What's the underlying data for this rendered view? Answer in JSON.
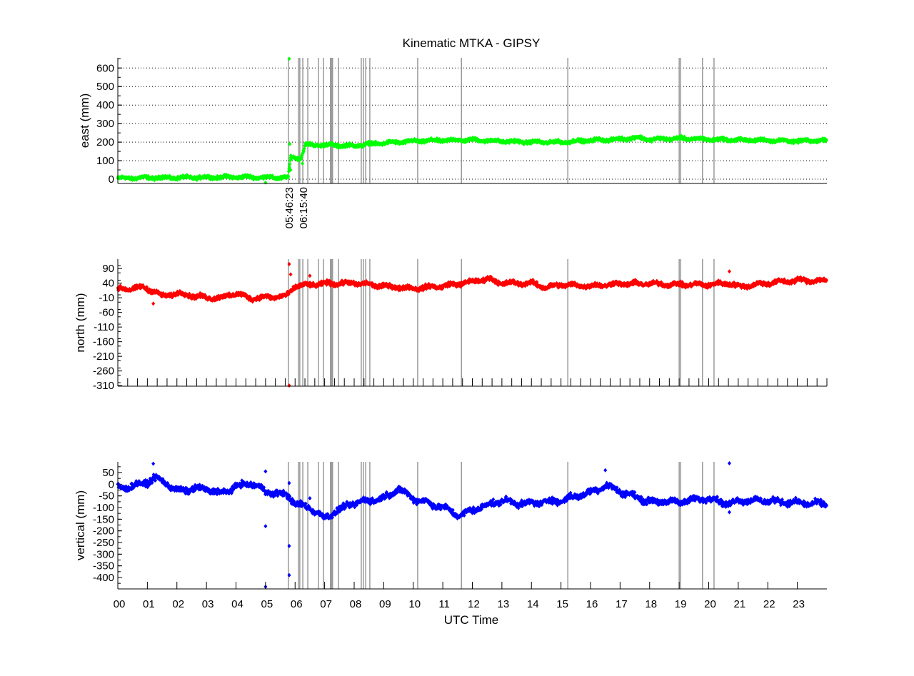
{
  "chart_data": {
    "type": "scatter",
    "title": "Kinematic MTKA - GIPSY",
    "xlabel": "UTC Time",
    "xlim": [
      0,
      24
    ],
    "x_tick_labels": [
      "00",
      "01",
      "02",
      "03",
      "04",
      "05",
      "06",
      "07",
      "08",
      "09",
      "10",
      "11",
      "12",
      "13",
      "14",
      "15",
      "16",
      "17",
      "18",
      "19",
      "20",
      "21",
      "22",
      "23"
    ],
    "event_lines_hours": [
      5.773,
      6.11,
      6.16,
      6.261,
      6.43,
      6.79,
      6.96,
      7.2,
      7.23,
      7.27,
      7.47,
      8.24,
      8.31,
      8.39,
      8.53,
      10.15,
      11.63,
      15.23,
      19.0,
      19.05,
      19.79,
      20.18
    ],
    "event_labels": [
      {
        "hour": 5.773,
        "text": "05:46:23"
      },
      {
        "hour": 6.261,
        "text": "06:15:40"
      }
    ],
    "panels": [
      {
        "name": "east",
        "ylabel": "east (mm)",
        "color": "#00ff00",
        "ylim": [
          -23,
          655
        ],
        "yticks": [
          0,
          100,
          200,
          300,
          400,
          500,
          600
        ],
        "ytick_labels": [
          "0",
          "100",
          "200",
          "300",
          "400",
          "500",
          "600"
        ],
        "grid": true,
        "noise": 8,
        "trend": [
          [
            0,
            5
          ],
          [
            1,
            8
          ],
          [
            2,
            8
          ],
          [
            3,
            10
          ],
          [
            4,
            12
          ],
          [
            5,
            10
          ],
          [
            5.77,
            8
          ],
          [
            5.85,
            120
          ],
          [
            6.2,
            115
          ],
          [
            6.35,
            185
          ],
          [
            7,
            185
          ],
          [
            8,
            180
          ],
          [
            8.5,
            190
          ],
          [
            9,
            195
          ],
          [
            10,
            205
          ],
          [
            11,
            210
          ],
          [
            12,
            212
          ],
          [
            13,
            205
          ],
          [
            14,
            200
          ],
          [
            15,
            200
          ],
          [
            16,
            210
          ],
          [
            17,
            215
          ],
          [
            17.5,
            225
          ],
          [
            18,
            215
          ],
          [
            19,
            220
          ],
          [
            20,
            215
          ],
          [
            21,
            212
          ],
          [
            22,
            210
          ],
          [
            23,
            205
          ],
          [
            24,
            210
          ]
        ],
        "outliers": [
          [
            5.8,
            650
          ],
          [
            5.82,
            190
          ],
          [
            5.0,
            -18
          ],
          [
            5.85,
            50
          ],
          [
            6.25,
            85
          ]
        ]
      },
      {
        "name": "north",
        "ylabel": "north (mm)",
        "color": "#ff0000",
        "ylim": [
          -312,
          122
        ],
        "yticks": [
          90,
          40,
          -10,
          -60,
          -110,
          -160,
          -210,
          -260,
          -310
        ],
        "ytick_labels": [
          "90",
          "40",
          "-10",
          "-60",
          "-110",
          "-160",
          "-210",
          "-260",
          "-310"
        ],
        "grid": false,
        "noise": 7,
        "trend": [
          [
            0,
            18
          ],
          [
            0.8,
            25
          ],
          [
            1.2,
            15
          ],
          [
            1.5,
            -5
          ],
          [
            2,
            5
          ],
          [
            3,
            -10
          ],
          [
            3.5,
            -10
          ],
          [
            4,
            5
          ],
          [
            4.5,
            -12
          ],
          [
            5,
            -8
          ],
          [
            5.7,
            -5
          ],
          [
            6,
            30
          ],
          [
            7,
            38
          ],
          [
            8,
            40
          ],
          [
            9,
            30
          ],
          [
            10,
            22
          ],
          [
            11,
            30
          ],
          [
            12,
            45
          ],
          [
            12.5,
            55
          ],
          [
            13,
            40
          ],
          [
            14,
            40
          ],
          [
            14.5,
            25
          ],
          [
            15,
            35
          ],
          [
            16,
            30
          ],
          [
            17,
            38
          ],
          [
            18,
            38
          ],
          [
            19,
            35
          ],
          [
            20,
            35
          ],
          [
            20.7,
            40
          ],
          [
            21,
            28
          ],
          [
            22,
            40
          ],
          [
            23,
            50
          ],
          [
            24,
            48
          ]
        ],
        "outliers": [
          [
            5.8,
            105
          ],
          [
            5.8,
            -310
          ],
          [
            5.85,
            70
          ],
          [
            6.5,
            65
          ],
          [
            1.2,
            -30
          ],
          [
            20.7,
            80
          ]
        ]
      },
      {
        "name": "vertical",
        "ylabel": "vertical (mm)",
        "color": "#0000ff",
        "ylim": [
          -449,
          96
        ],
        "yticks": [
          50,
          0,
          -50,
          -100,
          -150,
          -200,
          -250,
          -300,
          -350,
          -400
        ],
        "ytick_labels": [
          "50",
          "0",
          "-50",
          "-100",
          "-150",
          "-200",
          "-250",
          "-300",
          "-350",
          "-400"
        ],
        "grid": false,
        "noise": 12,
        "trend": [
          [
            0,
            -15
          ],
          [
            0.5,
            -10
          ],
          [
            1,
            10
          ],
          [
            1.25,
            25
          ],
          [
            1.6,
            10
          ],
          [
            2,
            -30
          ],
          [
            2.5,
            -20
          ],
          [
            3,
            -20
          ],
          [
            3.5,
            -40
          ],
          [
            4,
            -10
          ],
          [
            4.5,
            5
          ],
          [
            5,
            -30
          ],
          [
            5.8,
            -50
          ],
          [
            6,
            -85
          ],
          [
            6.5,
            -100
          ],
          [
            7,
            -145
          ],
          [
            7.5,
            -110
          ],
          [
            8,
            -80
          ],
          [
            9,
            -60
          ],
          [
            9.5,
            -20
          ],
          [
            10,
            -60
          ],
          [
            11,
            -100
          ],
          [
            11.6,
            -135
          ],
          [
            12,
            -110
          ],
          [
            13,
            -70
          ],
          [
            13.8,
            -85
          ],
          [
            14,
            -80
          ],
          [
            15,
            -70
          ],
          [
            16,
            -35
          ],
          [
            16.5,
            -5
          ],
          [
            17,
            -30
          ],
          [
            18,
            -75
          ],
          [
            19,
            -75
          ],
          [
            20,
            -60
          ],
          [
            20.7,
            -85
          ],
          [
            21,
            -70
          ],
          [
            22,
            -70
          ],
          [
            23,
            -80
          ],
          [
            24,
            -85
          ]
        ],
        "outliers": [
          [
            1.2,
            88
          ],
          [
            5.0,
            55
          ],
          [
            5.0,
            -180
          ],
          [
            5.0,
            -440
          ],
          [
            5.8,
            -265
          ],
          [
            5.8,
            -390
          ],
          [
            5.8,
            5
          ],
          [
            20.7,
            90
          ],
          [
            20.7,
            -120
          ],
          [
            16.5,
            60
          ],
          [
            6.5,
            -60
          ]
        ]
      }
    ]
  }
}
